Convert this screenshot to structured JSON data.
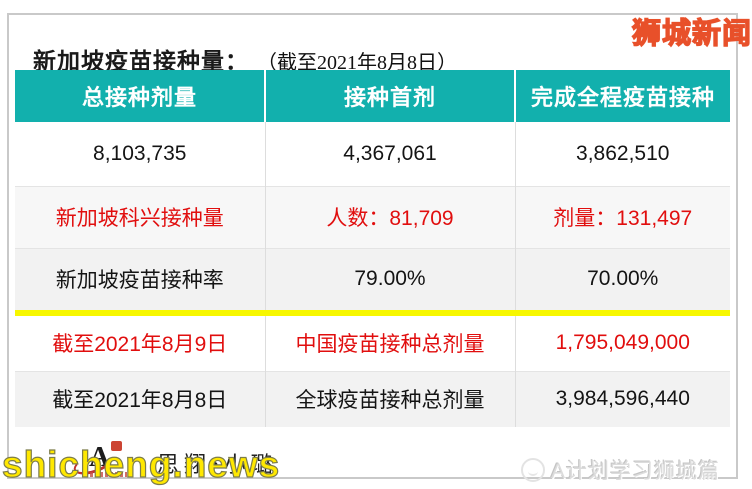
{
  "title": {
    "main": "新加坡疫苗接种量：",
    "sub": "（截至2021年8月8日）"
  },
  "brand": {
    "label": "狮城新闻",
    "color": "#ffff00",
    "outline": "#e8502a"
  },
  "chart_data": {
    "type": "table",
    "title": "新加坡疫苗接种量（截至2021年8月8日）",
    "columns": [
      "总接种剂量",
      "接种首剂",
      "完成全程疫苗接种"
    ],
    "rows": [
      [
        "8,103,735",
        "4,367,061",
        "3,862,510"
      ],
      [
        "新加坡科兴接种量",
        "人数：81,709",
        "剂量：131,497"
      ],
      [
        "新加坡疫苗接种率",
        "79.00%",
        "70.00%"
      ],
      [
        "截至2021年8月9日",
        "中国疫苗接种总剂量",
        "1,795,049,000"
      ],
      [
        "截至2021年8月8日",
        "全球疫苗接种总剂量",
        "3,984,596,440"
      ]
    ],
    "row_text_colors": [
      "black",
      "red",
      "black",
      "red",
      "black"
    ],
    "header_bg": "#12b0ad",
    "red": "#e10e0e",
    "divider_color": "#f7f700",
    "grid": "light-gray row and column separators"
  },
  "footer": {
    "signature": "思翔•小璐",
    "watermark_left": "shicheng.news",
    "watermark_right": "A计划学习狮城篇"
  }
}
